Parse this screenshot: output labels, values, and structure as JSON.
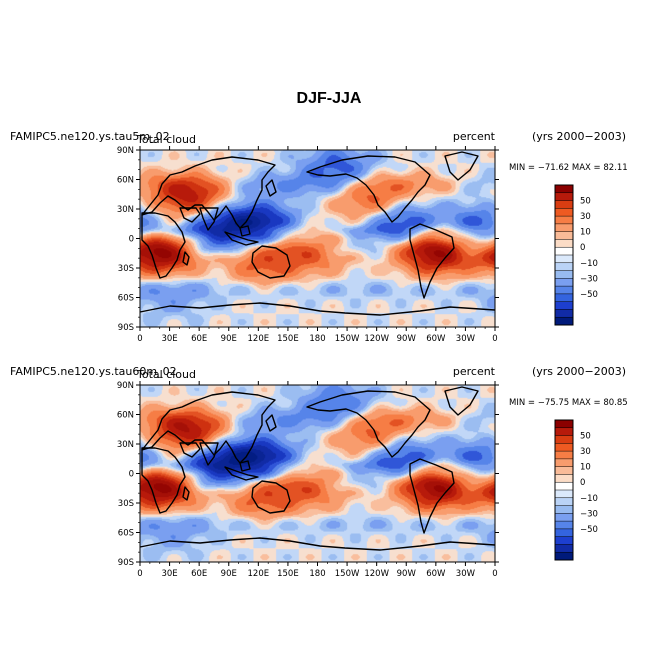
{
  "title": "DJF-JJA",
  "colorbar_levels": [
    "50",
    "30",
    "10",
    "0",
    "−10",
    "−30",
    "−50"
  ],
  "colorbar_colors": [
    "#8b0000",
    "#b71a0b",
    "#d93d12",
    "#ee5a22",
    "#f67d45",
    "#f89c6d",
    "#f9bb98",
    "#fbdcc6",
    "#ffffff",
    "#dbe9fb",
    "#bad3f6",
    "#98bbf0",
    "#7a9ff0",
    "#5684e9",
    "#3464df",
    "#1d3fcf",
    "#112ba6",
    "#001a7a"
  ],
  "lon_ticks": [
    "0",
    "30E",
    "60E",
    "90E",
    "120E",
    "150E",
    "180",
    "150W",
    "120W",
    "90W",
    "60W",
    "30W",
    "0"
  ],
  "lat_ticks": [
    "90N",
    "60N",
    "30N",
    "0",
    "30S",
    "60S",
    "90S"
  ],
  "panels": [
    {
      "case_label": "FAMIPC5.ne120.ys.tau5m_02",
      "variable_label": "Total cloud",
      "units": "percent",
      "years": "(yrs 2000−2003)",
      "stats": "MIN = −71.62  MAX =  82.11"
    },
    {
      "case_label": "FAMIPC5.ne120.ys.tau60m_02",
      "variable_label": "Total cloud",
      "units": "percent",
      "years": "(yrs 2000−2003)",
      "stats": "MIN = −75.75  MAX =  80.85"
    }
  ],
  "chart_data": [
    {
      "type": "heatmap",
      "title": "Total cloud",
      "variable": "DJF-JJA",
      "units": "percent",
      "xlim": [
        0,
        360
      ],
      "ylim": [
        -90,
        90
      ],
      "vmin": -71.62,
      "vmax": 82.11,
      "contour_levels": [
        -70,
        -60,
        -50,
        -40,
        -30,
        -20,
        -10,
        -5,
        0,
        5,
        10,
        20,
        30,
        40,
        50,
        60,
        70
      ],
      "anomalies": [
        {
          "lon": 50,
          "lat": 40,
          "value": 55
        },
        {
          "lon": 20,
          "lat": -15,
          "value": 75
        },
        {
          "lon": 300,
          "lat": -15,
          "value": 70
        },
        {
          "lon": 120,
          "lat": 15,
          "value": -60
        },
        {
          "lon": 75,
          "lat": 12,
          "value": -45
        },
        {
          "lon": 235,
          "lat": 38,
          "value": 35
        },
        {
          "lon": 175,
          "lat": -15,
          "value": 30
        },
        {
          "lon": 125,
          "lat": -25,
          "value": 35
        },
        {
          "lon": 265,
          "lat": 15,
          "value": -45
        },
        {
          "lon": 345,
          "lat": 12,
          "value": -40
        },
        {
          "lon": 200,
          "lat": 72,
          "value": -35
        },
        {
          "lon": 30,
          "lat": -60,
          "value": -15
        }
      ]
    },
    {
      "type": "heatmap",
      "title": "Total cloud",
      "variable": "DJF-JJA",
      "units": "percent",
      "xlim": [
        0,
        360
      ],
      "ylim": [
        -90,
        90
      ],
      "vmin": -75.75,
      "vmax": 80.85,
      "contour_levels": [
        -70,
        -60,
        -50,
        -40,
        -30,
        -20,
        -10,
        -5,
        0,
        5,
        10,
        20,
        30,
        40,
        50,
        60,
        70
      ],
      "anomalies": [
        {
          "lon": 50,
          "lat": 40,
          "value": 60
        },
        {
          "lon": 20,
          "lat": -15,
          "value": 75
        },
        {
          "lon": 300,
          "lat": -15,
          "value": 70
        },
        {
          "lon": 120,
          "lat": 15,
          "value": -65
        },
        {
          "lon": 75,
          "lat": 12,
          "value": -50
        },
        {
          "lon": 235,
          "lat": 38,
          "value": 35
        },
        {
          "lon": 175,
          "lat": -15,
          "value": 30
        },
        {
          "lon": 125,
          "lat": -25,
          "value": 35
        },
        {
          "lon": 265,
          "lat": 15,
          "value": -45
        },
        {
          "lon": 345,
          "lat": 12,
          "value": -40
        },
        {
          "lon": 200,
          "lat": 72,
          "value": -30
        },
        {
          "lon": 30,
          "lat": -60,
          "value": -15
        }
      ]
    }
  ]
}
